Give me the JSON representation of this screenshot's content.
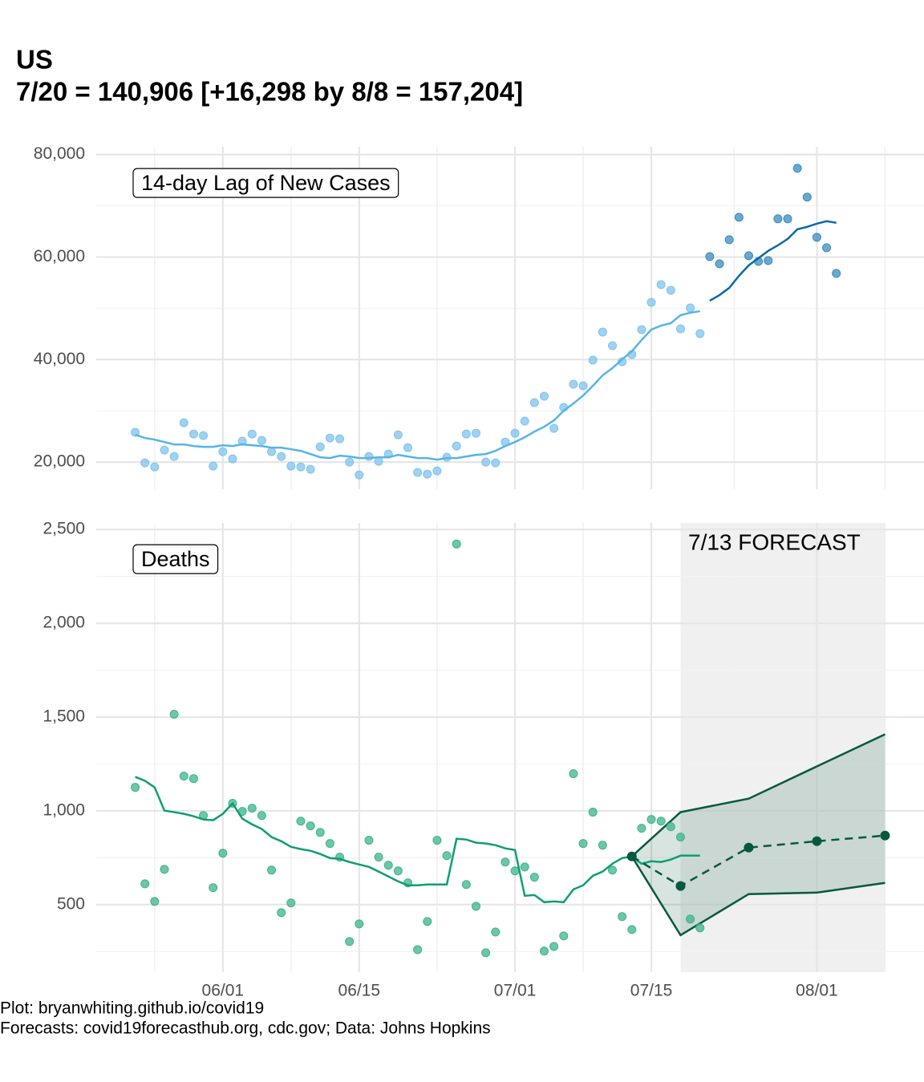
{
  "title": "US",
  "subtitle": "7/20 = 140,906 [+16,298 by 8/8 = 157,204]",
  "caption": [
    "Plot: bryanwhiting.github.io/covid19",
    "Forecasts: covid19forecasthub.org, cdc.gov; Data: Johns Hopkins"
  ],
  "chart_data": [
    {
      "type": "line",
      "annotation": "14-day Lag of New Cases",
      "xlim": [
        "05/19",
        "08/12"
      ],
      "ylim": [
        14700,
        81500
      ],
      "grid": true,
      "yticks": [
        {
          "value": 20000,
          "label": "20,000"
        },
        {
          "value": 40000,
          "label": "40,000"
        },
        {
          "value": 60000,
          "label": "60,000"
        },
        {
          "value": 80000,
          "label": "80,000"
        }
      ],
      "x": [
        "05/23",
        "05/24",
        "05/25",
        "05/26",
        "05/27",
        "05/28",
        "05/29",
        "05/30",
        "05/31",
        "06/01",
        "06/02",
        "06/03",
        "06/04",
        "06/05",
        "06/06",
        "06/07",
        "06/08",
        "06/09",
        "06/10",
        "06/11",
        "06/12",
        "06/13",
        "06/14",
        "06/15",
        "06/16",
        "06/17",
        "06/18",
        "06/19",
        "06/20",
        "06/21",
        "06/22",
        "06/23",
        "06/24",
        "06/25",
        "06/26",
        "06/27",
        "06/28",
        "06/29",
        "06/30",
        "07/01",
        "07/02",
        "07/03",
        "07/04",
        "07/05",
        "07/06",
        "07/07",
        "07/08",
        "07/09",
        "07/10",
        "07/11",
        "07/12",
        "07/13",
        "07/14",
        "07/15",
        "07/16",
        "07/17",
        "07/18",
        "07/19",
        "07/20"
      ],
      "series": [
        {
          "type": "scatter",
          "color": "#7fc3ec",
          "values": [
            25800,
            19840,
            19060,
            22350,
            21100,
            27670,
            25480,
            25170,
            19220,
            22040,
            20630,
            24070,
            25480,
            24230,
            22040,
            21100,
            19220,
            19060,
            18590,
            22980,
            24700,
            24540,
            20000,
            17500,
            21100,
            20160,
            21570,
            25320,
            22820,
            17960,
            17650,
            18280,
            20940,
            23130,
            25480,
            25640,
            20000,
            19840,
            23920,
            25640,
            27990,
            31590,
            32840,
            26580,
            30650,
            35190,
            34880,
            39890,
            45370,
            42710,
            39580,
            40990,
            45840,
            51160,
            54610,
            53510,
            45990,
            50070,
            45060
          ]
        },
        {
          "type": "line",
          "color": "#56b4e9",
          "values": [
            25320,
            24700,
            24380,
            23920,
            23450,
            23450,
            23130,
            22980,
            22980,
            23290,
            23130,
            23450,
            23290,
            23130,
            22820,
            22820,
            22510,
            22190,
            21570,
            20940,
            20780,
            21250,
            21100,
            20780,
            20780,
            20940,
            20940,
            21410,
            21100,
            20780,
            20780,
            20470,
            20780,
            20780,
            21100,
            21410,
            21570,
            22190,
            23130,
            23920,
            24850,
            25950,
            26890,
            28140,
            30020,
            31430,
            32990,
            34880,
            36910,
            38320,
            40040,
            41610,
            43800,
            45840,
            46620,
            47090,
            48660,
            49130,
            49440
          ]
        },
        {
          "type": "scatter",
          "color": "#3a8bbf",
          "x": [
            "07/21",
            "07/22",
            "07/23",
            "07/24",
            "07/25",
            "07/26",
            "07/27",
            "07/28",
            "07/29",
            "07/30",
            "07/31",
            "08/01",
            "08/02",
            "08/03"
          ],
          "values": [
            60090,
            58680,
            63380,
            67760,
            60250,
            59150,
            59310,
            67450,
            67450,
            77310,
            71680,
            63850,
            61810,
            56800
          ]
        },
        {
          "type": "line",
          "color": "#0a6aa6",
          "x": [
            "07/21",
            "07/22",
            "07/23",
            "07/24",
            "07/25",
            "07/26",
            "07/27",
            "07/28",
            "07/29",
            "07/30",
            "07/31",
            "08/01",
            "08/02",
            "08/03"
          ],
          "values": [
            51480,
            52570,
            53980,
            56330,
            58370,
            59780,
            61190,
            62280,
            63530,
            65410,
            65880,
            66510,
            66980,
            66670
          ]
        }
      ]
    },
    {
      "type": "line",
      "annotation": "Deaths",
      "xlim": [
        "05/19",
        "08/12"
      ],
      "ylim": [
        140,
        2535
      ],
      "grid": true,
      "xticks": [
        "06/01",
        "06/15",
        "07/01",
        "07/15",
        "08/01"
      ],
      "yticks": [
        500,
        {
          "value": 1000,
          "label": "1,000"
        },
        {
          "value": 1500,
          "label": "1,500"
        },
        {
          "value": 2000,
          "label": "2,000"
        },
        {
          "value": 2500,
          "label": "2,500"
        }
      ],
      "shade": {
        "xlim": [
          "07/18",
          "08/08"
        ],
        "label": "7/13 FORECAST",
        "color": "#f0f0f0"
      },
      "x": [
        "05/23",
        "05/24",
        "05/25",
        "05/26",
        "05/27",
        "05/28",
        "05/29",
        "05/30",
        "05/31",
        "06/01",
        "06/02",
        "06/03",
        "06/04",
        "06/05",
        "06/06",
        "06/07",
        "06/08",
        "06/09",
        "06/10",
        "06/11",
        "06/12",
        "06/13",
        "06/14",
        "06/15",
        "06/16",
        "06/17",
        "06/18",
        "06/19",
        "06/20",
        "06/21",
        "06/22",
        "06/23",
        "06/24",
        "06/25",
        "06/26",
        "06/27",
        "06/28",
        "06/29",
        "06/30",
        "07/01",
        "07/02",
        "07/03",
        "07/04",
        "07/05",
        "07/06",
        "07/07",
        "07/08",
        "07/09",
        "07/10",
        "07/11",
        "07/12",
        "07/13",
        "07/14",
        "07/15",
        "07/16",
        "07/17",
        "07/18",
        "07/19",
        "07/20"
      ],
      "series": [
        {
          "type": "band",
          "color": "#04593f",
          "x": [
            "07/13",
            "07/18",
            "07/25",
            "08/01",
            "08/08"
          ],
          "lower": [
            757,
            337,
            556,
            564,
            616
          ],
          "upper": [
            757,
            993,
            1065,
            1237,
            1408
          ]
        },
        {
          "type": "scatter",
          "color": "#3cb48a",
          "values": [
            1125,
            611,
            517,
            688,
            1515,
            1185,
            1172,
            975,
            590,
            774,
            1040,
            997,
            1014,
            975,
            684,
            457,
            509,
            945,
            920,
            885,
            826,
            753,
            303,
            397,
            843,
            753,
            710,
            680,
            616,
            260,
            410,
            843,
            761,
            2423,
            607,
            491,
            243,
            354,
            727,
            680,
            701,
            646,
            252,
            277,
            333,
            1198,
            826,
            993,
            817,
            684,
            436,
            367,
            907,
            954,
            945,
            915,
            860,
            423,
            376
          ]
        },
        {
          "type": "line",
          "color": "#0e9e73",
          "values": [
            1181,
            1160,
            1125,
            1001,
            993,
            984,
            971,
            954,
            950,
            984,
            1040,
            958,
            928,
            903,
            860,
            838,
            808,
            796,
            787,
            770,
            748,
            744,
            727,
            714,
            701,
            676,
            650,
            624,
            603,
            603,
            607,
            607,
            607,
            851,
            847,
            830,
            826,
            817,
            800,
            791,
            547,
            551,
            513,
            517,
            513,
            581,
            603,
            654,
            676,
            718,
            748,
            757,
            718,
            731,
            727,
            740,
            761,
            761,
            761
          ]
        },
        {
          "type": "line",
          "color": "#04593f",
          "dash": true,
          "markers": true,
          "x": [
            "07/13",
            "07/18",
            "07/25",
            "08/01",
            "08/08"
          ],
          "values": [
            757,
            599,
            804,
            838,
            868
          ]
        }
      ]
    }
  ]
}
